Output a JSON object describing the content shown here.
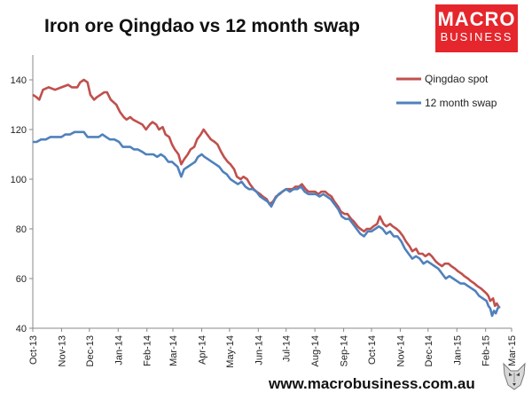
{
  "header": {
    "title": "Iron ore Qingdao vs 12 month swap",
    "logo_line1": "MACRO",
    "logo_line2": "BUSINESS"
  },
  "footer": {
    "url": "www.macrobusiness.com.au"
  },
  "colors": {
    "qingdao": "#c0504d",
    "swap": "#4f81bd",
    "logo_bg": "#e5262c"
  },
  "icons": {
    "logo_animal": "wolf-icon"
  },
  "chart_data": {
    "type": "line",
    "title": "Iron ore Qingdao vs 12 month swap",
    "xlabel": "",
    "ylabel": "",
    "ylim": [
      40,
      150
    ],
    "yticks": [
      40,
      60,
      80,
      100,
      120,
      140
    ],
    "xlim": [
      "2013-10-01",
      "2015-03-01"
    ],
    "xticks": [
      "Oct-13",
      "Nov-13",
      "Dec-13",
      "Jan-14",
      "Feb-14",
      "Mar-14",
      "Apr-14",
      "May-14",
      "Jun-14",
      "Jul-14",
      "Aug-14",
      "Sep-14",
      "Oct-14",
      "Nov-14",
      "Dec-14",
      "Jan-15",
      "Feb-15",
      "Mar-15"
    ],
    "grid": false,
    "legend": "top-right",
    "series": [
      {
        "name": "Qingdao spot",
        "color": "#c0504d",
        "points": [
          [
            "2013-10-01",
            134
          ],
          [
            "2013-10-05",
            133
          ],
          [
            "2013-10-08",
            132
          ],
          [
            "2013-10-12",
            136
          ],
          [
            "2013-10-18",
            137
          ],
          [
            "2013-10-25",
            136
          ],
          [
            "2013-11-01",
            137
          ],
          [
            "2013-11-08",
            138
          ],
          [
            "2013-11-12",
            137
          ],
          [
            "2013-11-18",
            137
          ],
          [
            "2013-11-21",
            139
          ],
          [
            "2013-11-25",
            140
          ],
          [
            "2013-11-29",
            139
          ],
          [
            "2013-12-02",
            134
          ],
          [
            "2013-12-06",
            132
          ],
          [
            "2013-12-09",
            133
          ],
          [
            "2013-12-13",
            134
          ],
          [
            "2013-12-17",
            135
          ],
          [
            "2013-12-20",
            135
          ],
          [
            "2013-12-24",
            132
          ],
          [
            "2013-12-30",
            130
          ],
          [
            "2014-01-03",
            127
          ],
          [
            "2014-01-07",
            125
          ],
          [
            "2014-01-10",
            124
          ],
          [
            "2014-01-14",
            125
          ],
          [
            "2014-01-17",
            124
          ],
          [
            "2014-01-22",
            123
          ],
          [
            "2014-01-27",
            122
          ],
          [
            "2014-01-31",
            120
          ],
          [
            "2014-02-04",
            122
          ],
          [
            "2014-02-07",
            123
          ],
          [
            "2014-02-11",
            122
          ],
          [
            "2014-02-14",
            120
          ],
          [
            "2014-02-18",
            121
          ],
          [
            "2014-02-21",
            118
          ],
          [
            "2014-02-25",
            117
          ],
          [
            "2014-02-28",
            114
          ],
          [
            "2014-03-03",
            112
          ],
          [
            "2014-03-07",
            110
          ],
          [
            "2014-03-10",
            106
          ],
          [
            "2014-03-13",
            108
          ],
          [
            "2014-03-17",
            110
          ],
          [
            "2014-03-20",
            112
          ],
          [
            "2014-03-24",
            113
          ],
          [
            "2014-03-27",
            116
          ],
          [
            "2014-03-31",
            118
          ],
          [
            "2014-04-03",
            120
          ],
          [
            "2014-04-07",
            118
          ],
          [
            "2014-04-11",
            116
          ],
          [
            "2014-04-15",
            115
          ],
          [
            "2014-04-18",
            114
          ],
          [
            "2014-04-22",
            111
          ],
          [
            "2014-04-25",
            109
          ],
          [
            "2014-04-29",
            107
          ],
          [
            "2014-05-02",
            106
          ],
          [
            "2014-05-06",
            104
          ],
          [
            "2014-05-09",
            101
          ],
          [
            "2014-05-13",
            100
          ],
          [
            "2014-05-16",
            101
          ],
          [
            "2014-05-20",
            100
          ],
          [
            "2014-05-23",
            98
          ],
          [
            "2014-05-27",
            96
          ],
          [
            "2014-05-30",
            95
          ],
          [
            "2014-06-03",
            94
          ],
          [
            "2014-06-06",
            93
          ],
          [
            "2014-06-10",
            92
          ],
          [
            "2014-06-13",
            90
          ],
          [
            "2014-06-17",
            91
          ],
          [
            "2014-06-20",
            93
          ],
          [
            "2014-06-24",
            94
          ],
          [
            "2014-06-27",
            95
          ],
          [
            "2014-07-01",
            96
          ],
          [
            "2014-07-04",
            96
          ],
          [
            "2014-07-08",
            96
          ],
          [
            "2014-07-11",
            97
          ],
          [
            "2014-07-15",
            97
          ],
          [
            "2014-07-18",
            98
          ],
          [
            "2014-07-22",
            96
          ],
          [
            "2014-07-25",
            95
          ],
          [
            "2014-07-29",
            95
          ],
          [
            "2014-08-01",
            95
          ],
          [
            "2014-08-05",
            94
          ],
          [
            "2014-08-08",
            95
          ],
          [
            "2014-08-12",
            95
          ],
          [
            "2014-08-15",
            94
          ],
          [
            "2014-08-19",
            93
          ],
          [
            "2014-08-22",
            91
          ],
          [
            "2014-08-26",
            89
          ],
          [
            "2014-08-29",
            87
          ],
          [
            "2014-09-02",
            86
          ],
          [
            "2014-09-05",
            86
          ],
          [
            "2014-09-09",
            84
          ],
          [
            "2014-09-12",
            83
          ],
          [
            "2014-09-16",
            81
          ],
          [
            "2014-09-19",
            80
          ],
          [
            "2014-09-23",
            79
          ],
          [
            "2014-09-26",
            80
          ],
          [
            "2014-09-30",
            80
          ],
          [
            "2014-10-03",
            81
          ],
          [
            "2014-10-07",
            82
          ],
          [
            "2014-10-10",
            85
          ],
          [
            "2014-10-14",
            82
          ],
          [
            "2014-10-17",
            81
          ],
          [
            "2014-10-21",
            82
          ],
          [
            "2014-10-24",
            81
          ],
          [
            "2014-10-28",
            80
          ],
          [
            "2014-10-31",
            79
          ],
          [
            "2014-11-04",
            77
          ],
          [
            "2014-11-07",
            75
          ],
          [
            "2014-11-11",
            73
          ],
          [
            "2014-11-14",
            71
          ],
          [
            "2014-11-18",
            72
          ],
          [
            "2014-11-21",
            70
          ],
          [
            "2014-11-25",
            70
          ],
          [
            "2014-11-28",
            69
          ],
          [
            "2014-12-02",
            70
          ],
          [
            "2014-12-05",
            69
          ],
          [
            "2014-12-09",
            67
          ],
          [
            "2014-12-12",
            66
          ],
          [
            "2014-12-16",
            65
          ],
          [
            "2014-12-19",
            66
          ],
          [
            "2014-12-23",
            66
          ],
          [
            "2014-12-26",
            65
          ],
          [
            "2014-12-30",
            64
          ],
          [
            "2015-01-02",
            63
          ],
          [
            "2015-01-06",
            62
          ],
          [
            "2015-01-09",
            61
          ],
          [
            "2015-01-13",
            60
          ],
          [
            "2015-01-16",
            59
          ],
          [
            "2015-01-20",
            58
          ],
          [
            "2015-01-23",
            57
          ],
          [
            "2015-01-27",
            56
          ],
          [
            "2015-01-30",
            55
          ],
          [
            "2015-02-02",
            54
          ],
          [
            "2015-02-04",
            53
          ],
          [
            "2015-02-06",
            51
          ],
          [
            "2015-02-09",
            52
          ],
          [
            "2015-02-11",
            49
          ],
          [
            "2015-02-13",
            50
          ],
          [
            "2015-02-16",
            48
          ]
        ]
      },
      {
        "name": "12 month swap",
        "color": "#4f81bd",
        "points": [
          [
            "2013-10-01",
            115
          ],
          [
            "2013-10-05",
            115
          ],
          [
            "2013-10-10",
            116
          ],
          [
            "2013-10-15",
            116
          ],
          [
            "2013-10-20",
            117
          ],
          [
            "2013-10-25",
            117
          ],
          [
            "2013-11-01",
            117
          ],
          [
            "2013-11-05",
            118
          ],
          [
            "2013-11-10",
            118
          ],
          [
            "2013-11-15",
            119
          ],
          [
            "2013-11-20",
            119
          ],
          [
            "2013-11-25",
            119
          ],
          [
            "2013-11-29",
            117
          ],
          [
            "2013-12-03",
            117
          ],
          [
            "2013-12-07",
            117
          ],
          [
            "2013-12-11",
            117
          ],
          [
            "2013-12-15",
            118
          ],
          [
            "2013-12-19",
            117
          ],
          [
            "2013-12-23",
            116
          ],
          [
            "2013-12-28",
            116
          ],
          [
            "2014-01-02",
            115
          ],
          [
            "2014-01-06",
            113
          ],
          [
            "2014-01-10",
            113
          ],
          [
            "2014-01-14",
            113
          ],
          [
            "2014-01-18",
            112
          ],
          [
            "2014-01-22",
            112
          ],
          [
            "2014-01-27",
            111
          ],
          [
            "2014-01-31",
            110
          ],
          [
            "2014-02-04",
            110
          ],
          [
            "2014-02-08",
            110
          ],
          [
            "2014-02-12",
            109
          ],
          [
            "2014-02-16",
            110
          ],
          [
            "2014-02-20",
            109
          ],
          [
            "2014-02-24",
            107
          ],
          [
            "2014-02-28",
            107
          ],
          [
            "2014-03-03",
            106
          ],
          [
            "2014-03-06",
            105
          ],
          [
            "2014-03-10",
            101
          ],
          [
            "2014-03-13",
            104
          ],
          [
            "2014-03-17",
            105
          ],
          [
            "2014-03-21",
            106
          ],
          [
            "2014-03-25",
            107
          ],
          [
            "2014-03-28",
            109
          ],
          [
            "2014-04-01",
            110
          ],
          [
            "2014-04-04",
            109
          ],
          [
            "2014-04-08",
            108
          ],
          [
            "2014-04-12",
            107
          ],
          [
            "2014-04-16",
            106
          ],
          [
            "2014-04-20",
            105
          ],
          [
            "2014-04-24",
            103
          ],
          [
            "2014-04-28",
            102
          ],
          [
            "2014-05-02",
            100
          ],
          [
            "2014-05-06",
            99
          ],
          [
            "2014-05-10",
            98
          ],
          [
            "2014-05-14",
            99
          ],
          [
            "2014-05-18",
            97
          ],
          [
            "2014-05-22",
            96
          ],
          [
            "2014-05-26",
            96
          ],
          [
            "2014-05-30",
            95
          ],
          [
            "2014-06-03",
            93
          ],
          [
            "2014-06-07",
            92
          ],
          [
            "2014-06-11",
            91
          ],
          [
            "2014-06-15",
            89
          ],
          [
            "2014-06-19",
            92
          ],
          [
            "2014-06-23",
            94
          ],
          [
            "2014-06-27",
            95
          ],
          [
            "2014-07-01",
            96
          ],
          [
            "2014-07-05",
            95
          ],
          [
            "2014-07-09",
            96
          ],
          [
            "2014-07-13",
            96
          ],
          [
            "2014-07-17",
            97
          ],
          [
            "2014-07-21",
            95
          ],
          [
            "2014-07-25",
            94
          ],
          [
            "2014-07-29",
            94
          ],
          [
            "2014-08-02",
            94
          ],
          [
            "2014-08-06",
            93
          ],
          [
            "2014-08-10",
            94
          ],
          [
            "2014-08-14",
            93
          ],
          [
            "2014-08-18",
            92
          ],
          [
            "2014-08-22",
            90
          ],
          [
            "2014-08-26",
            88
          ],
          [
            "2014-08-30",
            85
          ],
          [
            "2014-09-03",
            84
          ],
          [
            "2014-09-07",
            84
          ],
          [
            "2014-09-11",
            82
          ],
          [
            "2014-09-15",
            80
          ],
          [
            "2014-09-19",
            78
          ],
          [
            "2014-09-23",
            77
          ],
          [
            "2014-09-27",
            79
          ],
          [
            "2014-10-01",
            79
          ],
          [
            "2014-10-05",
            80
          ],
          [
            "2014-10-09",
            81
          ],
          [
            "2014-10-13",
            80
          ],
          [
            "2014-10-17",
            78
          ],
          [
            "2014-10-21",
            79
          ],
          [
            "2014-10-25",
            77
          ],
          [
            "2014-10-29",
            77
          ],
          [
            "2014-11-02",
            75
          ],
          [
            "2014-11-06",
            72
          ],
          [
            "2014-11-10",
            70
          ],
          [
            "2014-11-14",
            68
          ],
          [
            "2014-11-18",
            69
          ],
          [
            "2014-11-22",
            68
          ],
          [
            "2014-11-26",
            66
          ],
          [
            "2014-11-30",
            67
          ],
          [
            "2014-12-04",
            66
          ],
          [
            "2014-12-08",
            65
          ],
          [
            "2014-12-12",
            64
          ],
          [
            "2014-12-16",
            62
          ],
          [
            "2014-12-20",
            60
          ],
          [
            "2014-12-24",
            61
          ],
          [
            "2014-12-28",
            60
          ],
          [
            "2015-01-01",
            59
          ],
          [
            "2015-01-05",
            58
          ],
          [
            "2015-01-09",
            58
          ],
          [
            "2015-01-13",
            57
          ],
          [
            "2015-01-17",
            56
          ],
          [
            "2015-01-21",
            55
          ],
          [
            "2015-01-25",
            53
          ],
          [
            "2015-01-29",
            52
          ],
          [
            "2015-02-02",
            51
          ],
          [
            "2015-02-04",
            49
          ],
          [
            "2015-02-06",
            48
          ],
          [
            "2015-02-08",
            45
          ],
          [
            "2015-02-10",
            47
          ],
          [
            "2015-02-12",
            46
          ],
          [
            "2015-02-14",
            48
          ],
          [
            "2015-02-16",
            49
          ]
        ]
      }
    ]
  }
}
